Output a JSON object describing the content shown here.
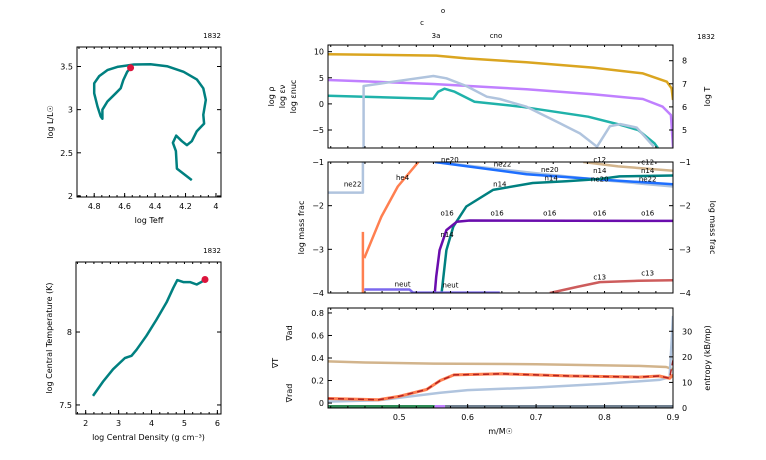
{
  "chart_data": [
    {
      "id": "hr",
      "type": "line",
      "title": "1832",
      "xlabel": "log Teff",
      "ylabel": "log L/L☉",
      "xlim": [
        4.913,
        3.967
      ],
      "ylim": [
        1.988,
        3.726
      ],
      "xticks": [
        4.8,
        4.6,
        4.4,
        4.2,
        4
      ],
      "yticks": [
        2,
        2.5,
        3,
        3.5
      ],
      "xtick_labels": [
        "4.8",
        "4.6",
        "4.4",
        "4.2",
        "4"
      ],
      "ytick_labels": [
        "2",
        "2.5",
        "3",
        "3.5"
      ],
      "series": [
        {
          "color": "#008080",
          "x": [
            4.159,
            4.257,
            4.263,
            4.283,
            4.261,
            4.224,
            4.191,
            4.159,
            4.126,
            4.078,
            4.083,
            4.067,
            4.083,
            4.126,
            4.213,
            4.322,
            4.43,
            4.539,
            4.648,
            4.713,
            4.767,
            4.8,
            4.8,
            4.778,
            4.757,
            4.746,
            4.746,
            4.713,
            4.659,
            4.626,
            4.609,
            4.583,
            4.561
          ],
          "y": [
            2.184,
            2.317,
            2.52,
            2.616,
            2.7,
            2.635,
            2.589,
            2.635,
            2.75,
            2.838,
            2.941,
            3.113,
            3.247,
            3.351,
            3.439,
            3.504,
            3.527,
            3.523,
            3.496,
            3.458,
            3.389,
            3.305,
            3.19,
            3.037,
            2.922,
            2.895,
            2.999,
            3.094,
            3.19,
            3.247,
            3.343,
            3.439,
            3.485
          ]
        }
      ],
      "current_point": {
        "x": 4.561,
        "y": 3.485,
        "color": "#dc143c"
      }
    },
    {
      "id": "trho",
      "type": "line",
      "title": "1832",
      "xlabel": "log Central Density (g cm⁻³)",
      "ylabel": "log Central Temperature (K)",
      "xlim": [
        1.706,
        6.11
      ],
      "ylim": [
        7.438,
        8.48
      ],
      "xticks": [
        2,
        3,
        4,
        5,
        6
      ],
      "yticks": [
        7.5,
        8
      ],
      "xtick_labels": [
        "2",
        "3",
        "4",
        "5",
        "6"
      ],
      "ytick_labels": [
        "7.5",
        "8"
      ],
      "series": [
        {
          "color": "#008080",
          "x": [
            2.223,
            2.528,
            2.832,
            3.188,
            3.391,
            3.543,
            3.848,
            4.152,
            4.457,
            4.66,
            4.782,
            4.964,
            5.168,
            5.371,
            5.523,
            5.624
          ],
          "y": [
            7.562,
            7.661,
            7.745,
            7.821,
            7.837,
            7.878,
            7.975,
            8.085,
            8.204,
            8.303,
            8.356,
            8.342,
            8.342,
            8.326,
            8.344,
            8.36
          ]
        }
      ],
      "current_point": {
        "x": 5.624,
        "y": 8.36,
        "color": "#dc143c"
      }
    },
    {
      "id": "profile-top",
      "type": "line",
      "title": "1832",
      "burn_labels": [
        "o",
        "c",
        "3a",
        "cno"
      ],
      "xlim": [
        0.396,
        0.9
      ],
      "ylim": [
        -8.45,
        11.28
      ],
      "y2lim": [
        4.22,
        8.68
      ],
      "yticks": [
        -5,
        0,
        5,
        10
      ],
      "ytick_labels": [
        "−5",
        "0",
        "5",
        "10"
      ],
      "y2ticks": [
        5,
        6,
        7,
        8
      ],
      "y2tick_labels": [
        "5",
        "6",
        "7",
        "8"
      ],
      "ylabels": [
        {
          "text": "log ρ",
          "color": "#c080ff"
        },
        {
          "text": "log εν",
          "color": "#20b2aa"
        },
        {
          "text": "log εnuc",
          "color": "#b0c4de"
        }
      ],
      "y2label": {
        "text": "log T",
        "color": "#daa520"
      },
      "series": [
        {
          "name": "log T",
          "axis": "y2",
          "color": "#daa520",
          "x": [
            0.396,
            0.554,
            0.598,
            0.686,
            0.783,
            0.856,
            0.891,
            0.898,
            0.9
          ],
          "y": [
            8.28,
            8.22,
            8.1,
            7.93,
            7.7,
            7.45,
            7.09,
            6.8,
            6.3
          ]
        },
        {
          "name": "log rho",
          "axis": "y",
          "color": "#c080ff",
          "x": [
            0.396,
            0.55,
            0.686,
            0.783,
            0.856,
            0.885,
            0.897,
            0.9
          ],
          "y": [
            4.58,
            3.81,
            2.8,
            1.84,
            0.94,
            -0.54,
            -2.13,
            -8.3
          ]
        },
        {
          "name": "log eps_nu",
          "axis": "y",
          "color": "#20b2aa",
          "x": [
            0.396,
            0.5495,
            0.557,
            0.566,
            0.581,
            0.61,
            0.678,
            0.776,
            0.824,
            0.849,
            0.873,
            0.878
          ],
          "y": [
            1.57,
            1.0,
            2.34,
            2.91,
            2.34,
            0.42,
            -0.54,
            -2.45,
            -4.04,
            -5.0,
            -7.55,
            -8.45
          ]
        },
        {
          "name": "log eps_nuc",
          "axis": "y",
          "color": "#b0c4de",
          "x": [
            0.448,
            0.448,
            0.491,
            0.55,
            0.569,
            0.598,
            0.628,
            0.647,
            0.686,
            0.735,
            0.764,
            0.789,
            0.808,
            0.823,
            0.847,
            0.872
          ],
          "y": [
            -8.45,
            3.43,
            4.25,
            5.34,
            4.9,
            3.43,
            1.38,
            0.94,
            -0.54,
            -3.73,
            -5.65,
            -8.2,
            -4.25,
            -3.87,
            -4.55,
            -8.2
          ]
        }
      ]
    },
    {
      "id": "profile-abund",
      "type": "line",
      "ylabel": "log mass frac",
      "y2label": "log mass frac",
      "xlim": [
        0.396,
        0.9
      ],
      "ylim": [
        -4,
        -1
      ],
      "yticks": [
        -4,
        -3,
        -2,
        -1
      ],
      "ytick_labels": [
        "−4",
        "−3",
        "−2",
        "−1"
      ],
      "series": [
        {
          "name": "ne22",
          "color": "#b0c4de",
          "x": [
            0.396,
            0.447,
            0.447
          ],
          "y": [
            -1.7,
            -1.7,
            -1.0
          ]
        },
        {
          "name": "ne22",
          "color": "#b0c4de",
          "x": [
            0.552,
            0.695,
            0.793,
            0.9
          ],
          "y": [
            -1.0,
            -1.25,
            -1.41,
            -1.56
          ]
        },
        {
          "name": "ne20",
          "color": "#1e6fff",
          "x": [
            0.552,
            0.686,
            0.793,
            0.9
          ],
          "y": [
            -1.0,
            -1.28,
            -1.4,
            -1.51
          ]
        },
        {
          "name": "c12",
          "color": "#d2b48c",
          "x": [
            0.769,
            0.82,
            0.9
          ],
          "y": [
            -1.0,
            -1.1,
            -1.2
          ]
        },
        {
          "name": "n14",
          "color": "#008080",
          "x": [
            0.562,
            0.569,
            0.579,
            0.598,
            0.637,
            0.695,
            0.744,
            0.793,
            0.822,
            0.9
          ],
          "y": [
            -4,
            -3.02,
            -2.48,
            -2.02,
            -1.64,
            -1.48,
            -1.44,
            -1.39,
            -1.33,
            -1.31
          ]
        },
        {
          "name": "o16",
          "color": "#6a0dad",
          "x": [
            0.552,
            0.554,
            0.559,
            0.569,
            0.584,
            0.603,
            0.9
          ],
          "y": [
            -4,
            -3.63,
            -3.02,
            -2.56,
            -2.37,
            -2.34,
            -2.35
          ]
        },
        {
          "name": "he4",
          "color": "#ff7f50",
          "x": [
            0.447,
            0.447
          ],
          "y": [
            -4,
            -2.6
          ]
        },
        {
          "name": "he4",
          "color": "#ff7f50",
          "x": [
            0.449,
            0.474,
            0.498,
            0.528
          ],
          "y": [
            -3.2,
            -2.25,
            -1.56,
            -1.0
          ]
        },
        {
          "name": "neut",
          "color": "#7b68ee",
          "x": [
            0.449,
            0.515,
            0.52,
            0.647
          ],
          "y": [
            -3.92,
            -3.92,
            -3.99,
            -3.99
          ]
        },
        {
          "name": "c13",
          "color": "#cd5c5c",
          "x": [
            0.72,
            0.76,
            0.793,
            0.85,
            0.9
          ],
          "y": [
            -4,
            -3.86,
            -3.75,
            -3.72,
            -3.71
          ]
        }
      ],
      "labels": [
        {
          "text": "ne22",
          "x": 0.432,
          "y": -1.56,
          "color": "#b0c4de"
        },
        {
          "text": "he4",
          "x": 0.505,
          "y": -1.41,
          "color": "#ff7f50"
        },
        {
          "text": "ne20",
          "x": 0.574,
          "y": -1.0,
          "color": "#1e6fff"
        },
        {
          "text": "ne22",
          "x": 0.651,
          "y": -1.1,
          "color": "#b0c4de"
        },
        {
          "text": "ne20",
          "x": 0.72,
          "y": -1.23,
          "color": "#1e6fff"
        },
        {
          "text": "n14",
          "x": 0.722,
          "y": -1.38,
          "color": "#008080"
        },
        {
          "text": "n14",
          "x": 0.647,
          "y": -1.56,
          "color": "#008080"
        },
        {
          "text": "c12",
          "x": 0.793,
          "y": -1.0,
          "color": "#d2b48c"
        },
        {
          "text": "c12",
          "x": 0.863,
          "y": -1.06,
          "color": "#d2b48c"
        },
        {
          "text": "n14",
          "x": 0.793,
          "y": -1.25,
          "color": "#008080"
        },
        {
          "text": "ne20",
          "x": 0.793,
          "y": -1.33,
          "color": "#1e6fff"
        },
        {
          "text": "n14",
          "x": 0.863,
          "y": -1.22,
          "color": "#008080"
        },
        {
          "text": "ne22",
          "x": 0.863,
          "y": -1.41,
          "color": "#b0c4de"
        },
        {
          "text": "o16",
          "x": 0.57,
          "y": -2.23,
          "color": "#6a0dad"
        },
        {
          "text": "o16",
          "x": 0.643,
          "y": -2.23,
          "color": "#6a0dad"
        },
        {
          "text": "o16",
          "x": 0.72,
          "y": -2.23,
          "color": "#6a0dad"
        },
        {
          "text": "o16",
          "x": 0.793,
          "y": -2.23,
          "color": "#6a0dad"
        },
        {
          "text": "o16",
          "x": 0.863,
          "y": -2.23,
          "color": "#6a0dad"
        },
        {
          "text": "n14",
          "x": 0.57,
          "y": -2.72,
          "color": "#008080"
        },
        {
          "text": "neut",
          "x": 0.505,
          "y": -3.85,
          "color": "#7b68ee"
        },
        {
          "text": "neut",
          "x": 0.575,
          "y": -3.87,
          "color": "#7b68ee"
        },
        {
          "text": "c13",
          "x": 0.793,
          "y": -3.69,
          "color": "#cd5c5c"
        },
        {
          "text": "c13",
          "x": 0.863,
          "y": -3.6,
          "color": "#cd5c5c"
        }
      ]
    },
    {
      "id": "profile-grad",
      "type": "line",
      "xlabel": "m/M☉",
      "xlim": [
        0.396,
        0.9
      ],
      "ylim": [
        -0.044,
        0.844
      ],
      "y2lim": [
        0,
        39.1
      ],
      "xticks": [
        0.5,
        0.6,
        0.7,
        0.8,
        0.9
      ],
      "xtick_labels": [
        "0.5",
        "0.6",
        "0.7",
        "0.8",
        "0.9"
      ],
      "yticks": [
        0,
        0.2,
        0.4,
        0.6,
        0.8
      ],
      "ytick_labels": [
        "0",
        "0.2",
        "0.4",
        "0.6",
        "0.8"
      ],
      "y2ticks": [
        0,
        10,
        20,
        30
      ],
      "y2tick_labels": [
        "0",
        "10",
        "20",
        "30"
      ],
      "ylabels": [
        {
          "text": "∇ad",
          "color": "#d2b48c"
        },
        {
          "text": "∇T",
          "color": "#b22222"
        },
        {
          "text": "∇rad",
          "color": "#ff7f50"
        }
      ],
      "y2label": {
        "text": "entropy (kB/mp)",
        "color": "#000000"
      },
      "series": [
        {
          "name": "grad_ad",
          "axis": "y",
          "color": "#d2b48c",
          "x": [
            0.396,
            0.45,
            0.55,
            0.7,
            0.85,
            0.89,
            0.9
          ],
          "y": [
            0.37,
            0.36,
            0.35,
            0.345,
            0.33,
            0.32,
            0.3
          ]
        },
        {
          "name": "entropy",
          "axis": "y2",
          "color": "#b0c4de",
          "x": [
            0.396,
            0.47,
            0.53,
            0.56,
            0.6,
            0.7,
            0.8,
            0.88,
            0.895,
            0.9
          ],
          "y": [
            2.5,
            3,
            5,
            6,
            7,
            8,
            9.5,
            11,
            12,
            36
          ]
        },
        {
          "name": "grad_rad",
          "axis": "y",
          "color": "#ff7f50",
          "x": [
            0.396,
            0.47,
            0.5,
            0.54,
            0.56,
            0.58,
            0.65,
            0.75,
            0.85,
            0.88,
            0.895,
            0.9
          ],
          "y": [
            0.04,
            0.03,
            0.06,
            0.12,
            0.2,
            0.25,
            0.26,
            0.24,
            0.23,
            0.24,
            0.22,
            0.25
          ]
        },
        {
          "name": "grad_T",
          "axis": "y",
          "color": "#b22222",
          "dash": true,
          "x": [
            0.396,
            0.47,
            0.5,
            0.54,
            0.56,
            0.58,
            0.65,
            0.75,
            0.85,
            0.88,
            0.895,
            0.9
          ],
          "y": [
            0.04,
            0.03,
            0.06,
            0.12,
            0.2,
            0.25,
            0.26,
            0.24,
            0.23,
            0.24,
            0.22,
            0.38
          ]
        }
      ],
      "mixing_bar": [
        {
          "from": 0.396,
          "to": 0.552,
          "color": "#2e8b57"
        },
        {
          "from": 0.552,
          "to": 0.567,
          "color": "#c080ff"
        },
        {
          "from": 0.567,
          "to": 0.9,
          "color": "#708090"
        }
      ]
    }
  ]
}
